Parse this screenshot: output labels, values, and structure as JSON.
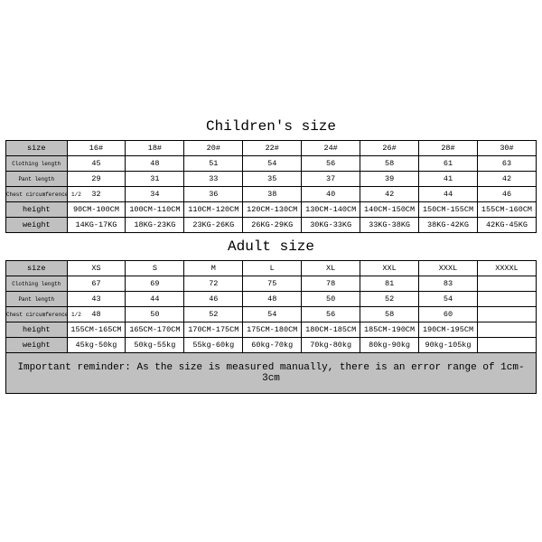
{
  "children_title": "Children's size",
  "adult_title": "Adult size",
  "note": "Important reminder: As the size is measured manually, there is an error range of 1cm-3cm",
  "row_labels": {
    "size": "size",
    "clothing_length": "Clothing length",
    "pant_length": "Pant length",
    "chest": "Chest circumference 1/2",
    "height": "height",
    "weight": "weight"
  },
  "children": {
    "sizes": [
      "16#",
      "18#",
      "20#",
      "22#",
      "24#",
      "26#",
      "28#",
      "30#"
    ],
    "clothing_length": [
      "45",
      "48",
      "51",
      "54",
      "56",
      "58",
      "61",
      "63"
    ],
    "pant_length": [
      "29",
      "31",
      "33",
      "35",
      "37",
      "39",
      "41",
      "42"
    ],
    "chest": [
      "32",
      "34",
      "36",
      "38",
      "40",
      "42",
      "44",
      "46"
    ],
    "height": [
      "90CM-100CM",
      "100CM-110CM",
      "110CM-120CM",
      "120CM-130CM",
      "130CM-140CM",
      "140CM-150CM",
      "150CM-155CM",
      "155CM-160CM"
    ],
    "weight": [
      "14KG-17KG",
      "18KG-23KG",
      "23KG-26KG",
      "26KG-29KG",
      "30KG-33KG",
      "33KG-38KG",
      "38KG-42KG",
      "42KG-45KG"
    ]
  },
  "adult": {
    "sizes": [
      "XS",
      "S",
      "M",
      "L",
      "XL",
      "XXL",
      "XXXL",
      "XXXXL"
    ],
    "clothing_length": [
      "67",
      "69",
      "72",
      "75",
      "78",
      "81",
      "83",
      ""
    ],
    "pant_length": [
      "43",
      "44",
      "46",
      "48",
      "50",
      "52",
      "54",
      ""
    ],
    "chest": [
      "48",
      "50",
      "52",
      "54",
      "56",
      "58",
      "60",
      ""
    ],
    "height": [
      "155CM-165CM",
      "165CM-170CM",
      "170CM-175CM",
      "175CM-180CM",
      "180CM-185CM",
      "185CM-190CM",
      "190CM-195CM",
      ""
    ],
    "weight": [
      "45kg-50kg",
      "50kg-55kg",
      "55kg-60kg",
      "60kg-70kg",
      "70kg-80kg",
      "80kg-90kg",
      "90kg-105kg",
      ""
    ]
  },
  "colors": {
    "header_bg": "#c0c0c0",
    "border": "#000000",
    "page_bg": "#ffffff"
  }
}
